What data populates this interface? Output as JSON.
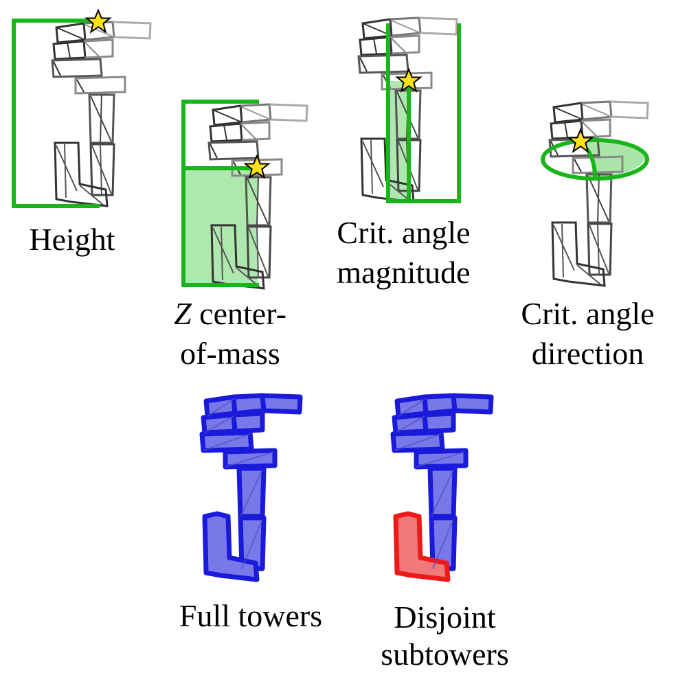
{
  "colors": {
    "highlight_green": "#1ab51a",
    "highlight_fill": "#9be29b",
    "star_fill": "#ffe01a",
    "star_stroke": "#000000",
    "tower_blue": "#1a1adb",
    "tower_blue_fill": "#7878e8",
    "subtower_red": "#ee1a1a",
    "subtower_red_fill": "#f07a7a",
    "wire_dark": "#333333",
    "wire_light": "#aaaaaa"
  },
  "panels": {
    "height": {
      "label": "Height"
    },
    "zcom": {
      "label_italic": "Z",
      "label_rest": " center-",
      "label_line2": "of-mass"
    },
    "crit_mag": {
      "label_line1": "Crit. angle",
      "label_line2": "magnitude"
    },
    "crit_dir": {
      "label_line1": "Crit. angle",
      "label_line2": "direction"
    },
    "full_towers": {
      "label": "Full towers"
    },
    "disjoint": {
      "label_line1": "Disjoint",
      "label_line2": "subtowers"
    }
  }
}
